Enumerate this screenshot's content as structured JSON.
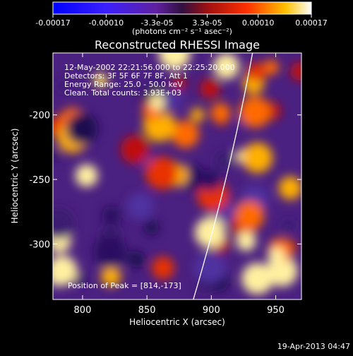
{
  "chart_data": {
    "type": "heatmap",
    "title": "Reconstructed RHESSI Image",
    "xlabel": "Heliocentric X (arcsec)",
    "ylabel": "Heliocentric Y (arcsec)",
    "xlim": [
      777,
      970
    ],
    "ylim": [
      -343,
      -152
    ],
    "x_ticks": [
      800,
      850,
      900,
      950
    ],
    "y_ticks": [
      -200,
      -250,
      -300
    ],
    "colorbar": {
      "min": -0.00017,
      "max": 0.00017,
      "ticks": [
        {
          "value": -0.00017,
          "label": "-0.00017"
        },
        {
          "value": -0.0001,
          "label": "-0.00010"
        },
        {
          "value": -3.3e-05,
          "label": "-3.3e-05"
        },
        {
          "value": 3.3e-05,
          "label": "3.3e-05"
        },
        {
          "value": 0.0001,
          "label": "0.00010"
        },
        {
          "value": 0.00017,
          "label": "0.00017"
        }
      ],
      "unit_label": "(photons cm⁻² s⁻¹ asec⁻²)"
    },
    "info_lines": [
      "12-May-2002 22:21:56.000 to 22:25:20.000",
      "Detectors: 3F 5F 6F 7F 8F, Att 1",
      "Energy Range: 25.0 - 50.0 keV",
      "Clean. Total counts: 3.93E+03"
    ],
    "peak_label": "Position of Peak = [814,-173]",
    "peak": [
      814,
      -173
    ],
    "limb_arc": [
      [
        932,
        -152
      ],
      [
        886,
        -343
      ]
    ],
    "footer_date": "19-Apr-2013 04:47",
    "colors": {
      "background": "#000000",
      "foreground": "#ffffff",
      "limb": "#ffffff"
    }
  }
}
